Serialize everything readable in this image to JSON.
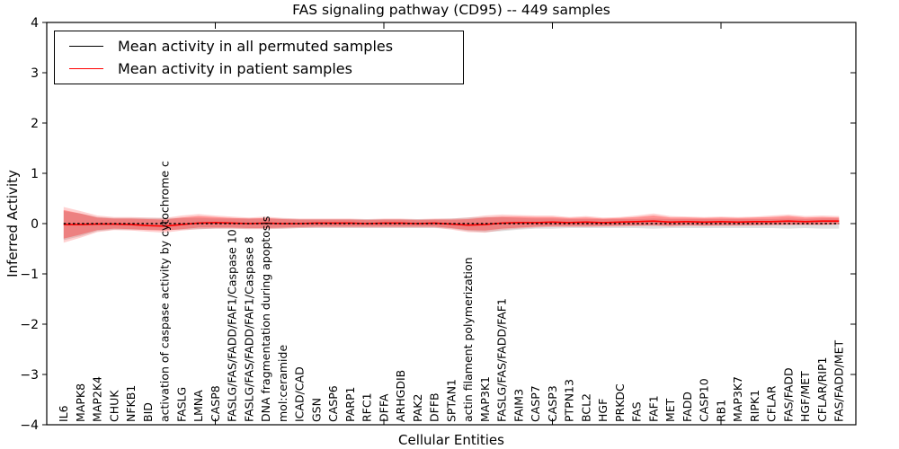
{
  "figure": {
    "title": "FAS signaling pathway (CD95) -- 449 samples",
    "xlabel": "Cellular Entities",
    "ylabel": "Inferred Activity"
  },
  "legend": {
    "items": [
      {
        "label": "Mean activity in all permuted samples",
        "color": "#000000"
      },
      {
        "label": "Mean activity in patient samples",
        "color": "#ff0000"
      }
    ]
  },
  "colors": {
    "patient_line": "#ff0000",
    "permuted_line": "#000000",
    "patient_band_inner": "rgba(255,0,0,0.30)",
    "patient_band_outer": "rgba(255,0,0,0.18)",
    "permuted_band": "rgba(90,90,90,0.18)",
    "axis": "#000000"
  },
  "chart_data": {
    "type": "line",
    "title": "FAS signaling pathway (CD95) -- 449 samples",
    "xlabel": "Cellular Entities",
    "ylabel": "Inferred Activity",
    "ylim": [
      -4,
      4
    ],
    "yticks": [
      4,
      3,
      2,
      1,
      0,
      -1,
      -2,
      -3,
      -4
    ],
    "ytick_labels": [
      "4",
      "3",
      "2",
      "1",
      "0",
      "−1",
      "−2",
      "−3",
      "−4"
    ],
    "xtick_positions": [
      10,
      20,
      30,
      40
    ],
    "grid": false,
    "legend_position": "upper left",
    "categories": [
      "IL6",
      "MAPK8",
      "MAP2K4",
      "CHUK",
      "NFKB1",
      "BID",
      "activation of caspase activity by cytochrome c",
      "FASLG",
      "LMNA",
      "CASP8",
      "FASLG/FAS/FADD/FAF1/Caspase 10",
      "FASLG/FAS/FADD/FAF1/Caspase 8",
      "DNA fragmentation during apoptosis",
      "mol:ceramide",
      "ICAD/CAD",
      "GSN",
      "CASP6",
      "PARP1",
      "RFC1",
      "DFFA",
      "ARHGDIB",
      "PAK2",
      "DFFB",
      "SPTAN1",
      "actin filament polymerization",
      "MAP3K1",
      "FASLG/FAS/FADD/FAF1",
      "FAIM3",
      "CASP7",
      "CASP3",
      "PTPN13",
      "BCL2",
      "HGF",
      "PRKDC",
      "FAS",
      "FAF1",
      "MET",
      "FADD",
      "CASP10",
      "RB1",
      "MAP3K7",
      "RIPK1",
      "CFLAR",
      "FAS/FADD",
      "HGF/MET",
      "CFLAR/RIP1",
      "FAS/FADD/MET"
    ],
    "series": [
      {
        "name": "Mean activity in all permuted samples",
        "color": "#000000",
        "style": "dashed",
        "values": [
          0,
          0,
          0,
          0,
          0,
          0,
          0,
          0,
          0,
          0,
          0,
          0,
          0,
          0,
          0,
          0,
          0,
          0,
          0,
          0,
          0,
          0,
          0,
          0,
          0,
          0,
          0,
          0,
          0,
          0,
          0,
          0,
          0,
          0,
          0,
          0,
          0,
          0,
          0,
          0,
          0,
          0,
          0,
          0,
          0,
          0,
          0
        ]
      },
      {
        "name": "Mean activity in patient samples",
        "color": "#ff0000",
        "style": "solid",
        "values": [
          -0.02,
          -0.02,
          -0.01,
          -0.01,
          -0.02,
          -0.04,
          -0.05,
          -0.02,
          0.01,
          0.02,
          0.01,
          0.0,
          0.01,
          0.0,
          0.0,
          0.01,
          0.01,
          0.01,
          0.0,
          0.01,
          0.01,
          0.0,
          0.01,
          -0.01,
          -0.03,
          -0.02,
          0.01,
          0.02,
          0.02,
          0.03,
          0.02,
          0.03,
          0.02,
          0.03,
          0.04,
          0.05,
          0.03,
          0.04,
          0.03,
          0.04,
          0.03,
          0.04,
          0.04,
          0.05,
          0.04,
          0.05,
          0.05
        ]
      }
    ],
    "bands": [
      {
        "name": "permuted-confidence-band",
        "color": "rgba(90,90,90,0.18)",
        "lo": [
          -0.33,
          -0.25,
          -0.15,
          -0.12,
          -0.12,
          -0.12,
          -0.13,
          -0.12,
          -0.11,
          -0.1,
          -0.1,
          -0.1,
          -0.1,
          -0.1,
          -0.09,
          -0.09,
          -0.09,
          -0.09,
          -0.09,
          -0.09,
          -0.09,
          -0.09,
          -0.09,
          -0.1,
          -0.15,
          -0.17,
          -0.15,
          -0.12,
          -0.1,
          -0.1,
          -0.09,
          -0.09,
          -0.09,
          -0.09,
          -0.09,
          -0.1,
          -0.09,
          -0.09,
          -0.09,
          -0.09,
          -0.09,
          -0.09,
          -0.09,
          -0.1,
          -0.09,
          -0.1,
          -0.1
        ],
        "hi": [
          0.25,
          0.2,
          0.13,
          0.11,
          0.11,
          0.11,
          0.11,
          0.11,
          0.11,
          0.1,
          0.1,
          0.1,
          0.1,
          0.1,
          0.09,
          0.09,
          0.09,
          0.09,
          0.09,
          0.09,
          0.09,
          0.09,
          0.09,
          0.1,
          0.12,
          0.13,
          0.13,
          0.11,
          0.1,
          0.1,
          0.09,
          0.09,
          0.09,
          0.09,
          0.09,
          0.1,
          0.09,
          0.09,
          0.09,
          0.09,
          0.09,
          0.09,
          0.09,
          0.1,
          0.09,
          0.1,
          0.1
        ]
      },
      {
        "name": "patient-confidence-band-outer",
        "color": "rgba(255,0,0,0.18)",
        "lo": [
          -0.38,
          -0.28,
          -0.17,
          -0.13,
          -0.14,
          -0.16,
          -0.18,
          -0.14,
          -0.11,
          -0.1,
          -0.1,
          -0.11,
          -0.11,
          -0.1,
          -0.09,
          -0.08,
          -0.08,
          -0.08,
          -0.08,
          -0.08,
          -0.08,
          -0.08,
          -0.08,
          -0.12,
          -0.17,
          -0.18,
          -0.13,
          -0.1,
          -0.08,
          -0.07,
          -0.07,
          -0.07,
          -0.06,
          -0.06,
          -0.05,
          -0.05,
          -0.06,
          -0.05,
          -0.05,
          -0.05,
          -0.05,
          -0.04,
          -0.04,
          -0.03,
          -0.03,
          -0.03,
          -0.02
        ],
        "hi": [
          0.33,
          0.25,
          0.16,
          0.13,
          0.13,
          0.12,
          0.11,
          0.16,
          0.19,
          0.16,
          0.14,
          0.12,
          0.14,
          0.11,
          0.1,
          0.1,
          0.1,
          0.1,
          0.09,
          0.1,
          0.1,
          0.09,
          0.1,
          0.1,
          0.12,
          0.16,
          0.18,
          0.17,
          0.16,
          0.16,
          0.13,
          0.15,
          0.12,
          0.13,
          0.16,
          0.2,
          0.15,
          0.14,
          0.13,
          0.14,
          0.13,
          0.14,
          0.16,
          0.18,
          0.15,
          0.16,
          0.15
        ]
      },
      {
        "name": "patient-confidence-band-inner",
        "color": "rgba(255,0,0,0.30)",
        "lo": [
          -0.3,
          -0.22,
          -0.13,
          -0.1,
          -0.11,
          -0.13,
          -0.14,
          -0.11,
          -0.08,
          -0.08,
          -0.08,
          -0.09,
          -0.09,
          -0.08,
          -0.07,
          -0.06,
          -0.06,
          -0.06,
          -0.06,
          -0.06,
          -0.06,
          -0.06,
          -0.06,
          -0.09,
          -0.13,
          -0.14,
          -0.1,
          -0.08,
          -0.06,
          -0.05,
          -0.05,
          -0.05,
          -0.05,
          -0.04,
          -0.04,
          -0.03,
          -0.04,
          -0.03,
          -0.04,
          -0.03,
          -0.03,
          -0.03,
          -0.02,
          -0.02,
          -0.02,
          -0.02,
          -0.01
        ],
        "hi": [
          0.27,
          0.2,
          0.12,
          0.1,
          0.1,
          0.09,
          0.08,
          0.12,
          0.15,
          0.13,
          0.11,
          0.1,
          0.11,
          0.09,
          0.08,
          0.08,
          0.08,
          0.08,
          0.07,
          0.08,
          0.08,
          0.07,
          0.08,
          0.08,
          0.09,
          0.12,
          0.14,
          0.14,
          0.13,
          0.13,
          0.11,
          0.12,
          0.1,
          0.11,
          0.13,
          0.16,
          0.12,
          0.12,
          0.11,
          0.12,
          0.11,
          0.12,
          0.13,
          0.15,
          0.12,
          0.13,
          0.12
        ]
      }
    ]
  }
}
